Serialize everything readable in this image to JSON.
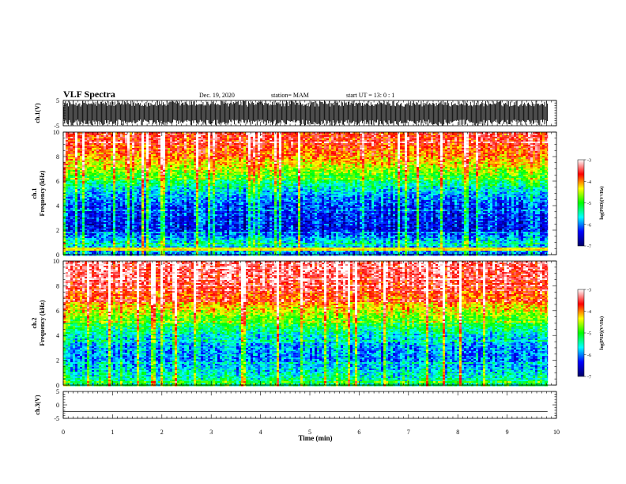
{
  "header": {
    "title": "VLF Spectra",
    "date": "Dec. 19, 2020",
    "station": "station= MAM",
    "start": "start UT =  13: 0 : 1"
  },
  "chart_data": [
    {
      "type": "line",
      "panel": "ch1-waveform",
      "ylabel": "ch.1(V)",
      "ylim": [
        -5,
        5
      ],
      "yticks": [
        "5",
        "-5"
      ],
      "xlim": [
        0,
        10
      ],
      "signal": "dense oscillating waveform nearly filling -5 to 5 V over 0-9.82 min",
      "color": "#000000"
    },
    {
      "type": "heatmap",
      "panel": "ch1-spectrogram",
      "ylabel": "ch.1\nFrequency (kHz)",
      "ylim": [
        0,
        10
      ],
      "yticks": [
        "0",
        "2",
        "4",
        "6",
        "8",
        "10"
      ],
      "xlim": [
        0,
        10
      ],
      "data_end_min": 9.82,
      "colorbar": {
        "label": "log(PSD)(V²/Hz)",
        "range": [
          -7,
          -3
        ],
        "ticks": [
          "-3",
          "-4",
          "-5",
          "-6",
          "-7"
        ],
        "colors": [
          "#000066",
          "#0000ff",
          "#00ffff",
          "#00ff00",
          "#ffff00",
          "#ff0000",
          "#ffffff"
        ]
      },
      "profile_logpsd": [
        [
          0,
          -6.0
        ],
        [
          1,
          -5.6
        ],
        [
          2,
          -6.4
        ],
        [
          3,
          -6.3
        ],
        [
          4,
          -6.2
        ],
        [
          5,
          -5.8
        ],
        [
          6,
          -5.2
        ],
        [
          7,
          -4.5
        ],
        [
          8,
          -4.0
        ],
        [
          9,
          -3.7
        ],
        [
          10,
          -3.6
        ]
      ],
      "bright_line_khz": 0.45
    },
    {
      "type": "heatmap",
      "panel": "ch2-spectrogram",
      "ylabel": "ch.2\nFrequency (kHz)",
      "ylim": [
        0,
        10
      ],
      "yticks": [
        "0",
        "2",
        "4",
        "6",
        "8",
        "10"
      ],
      "xlim": [
        0,
        10
      ],
      "data_end_min": 9.82,
      "colorbar": {
        "label": "log(PSD)(V²/Hz)",
        "range": [
          -7,
          -3
        ],
        "ticks": [
          "-3",
          "-4",
          "-5",
          "-6",
          "-7"
        ],
        "colors": [
          "#000066",
          "#0000ff",
          "#00ffff",
          "#00ff00",
          "#ffff00",
          "#ff0000",
          "#ffffff"
        ]
      },
      "profile_logpsd": [
        [
          0,
          -5.2
        ],
        [
          1,
          -5.6
        ],
        [
          2,
          -6.0
        ],
        [
          3,
          -5.9
        ],
        [
          4,
          -5.6
        ],
        [
          5,
          -5.0
        ],
        [
          6,
          -4.4
        ],
        [
          7,
          -3.9
        ],
        [
          8,
          -3.6
        ],
        [
          9,
          -3.4
        ],
        [
          10,
          -3.3
        ]
      ]
    },
    {
      "type": "line",
      "panel": "ch3-waveform",
      "ylabel": "ch.3(V)",
      "ylim": [
        -5,
        5
      ],
      "yticks": [
        "5",
        "0",
        "-5"
      ],
      "xlim": [
        0,
        10
      ],
      "constant_value": -2.5,
      "color": "#000000"
    }
  ],
  "xaxis": {
    "label": "Time (min)",
    "ticks": [
      "0",
      "1",
      "2",
      "3",
      "4",
      "5",
      "6",
      "7",
      "8",
      "9",
      "10"
    ]
  }
}
